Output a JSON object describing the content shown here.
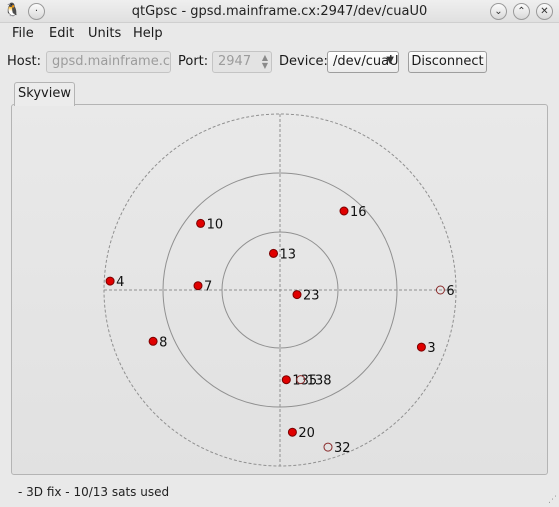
{
  "window": {
    "title": "qtGpsc - gpsd.mainframe.cx:2947/dev/cuaU0"
  },
  "menu": [
    {
      "label": "File"
    },
    {
      "label": "Edit"
    },
    {
      "label": "Units"
    },
    {
      "label": "Help"
    }
  ],
  "toolbar": {
    "host_label": "Host:",
    "host_value": "gpsd.mainframe.cx",
    "port_label": "Port:",
    "port_value": "2947",
    "device_label": "Device:",
    "device_value": "/dev/cuaU",
    "disconnect_label": "Disconnect"
  },
  "tabs": [
    {
      "label": "Skyview",
      "selected": true
    }
  ],
  "skyview": {
    "satellites": [
      {
        "prn": "10",
        "elevation": 37,
        "azimuth": 310,
        "used": true
      },
      {
        "prn": "16",
        "elevation": 38,
        "azimuth": 39,
        "used": true
      },
      {
        "prn": "13",
        "elevation": 71,
        "azimuth": 350,
        "used": true
      },
      {
        "prn": "23",
        "elevation": 81,
        "azimuth": 105,
        "used": true
      },
      {
        "prn": "7",
        "elevation": 48,
        "azimuth": 273,
        "used": true
      },
      {
        "prn": "4",
        "elevation": 3,
        "azimuth": 273,
        "used": true
      },
      {
        "prn": "6",
        "elevation": 8,
        "azimuth": 90,
        "used": false
      },
      {
        "prn": "8",
        "elevation": 20,
        "azimuth": 248,
        "used": true
      },
      {
        "prn": "3",
        "elevation": 12,
        "azimuth": 112,
        "used": true
      },
      {
        "prn": "135",
        "elevation": 44,
        "azimuth": 176,
        "used": true
      },
      {
        "prn": "138",
        "elevation": 43,
        "azimuth": 167,
        "used": false
      },
      {
        "prn": "20",
        "elevation": 17,
        "azimuth": 175,
        "used": true
      },
      {
        "prn": "32",
        "elevation": 6,
        "azimuth": 163,
        "used": false
      }
    ]
  },
  "status": {
    "text": "- 3D fix - 10/13 sats used"
  },
  "colors": {
    "used_fill": "#e00000",
    "ring_stroke": "#909090"
  }
}
